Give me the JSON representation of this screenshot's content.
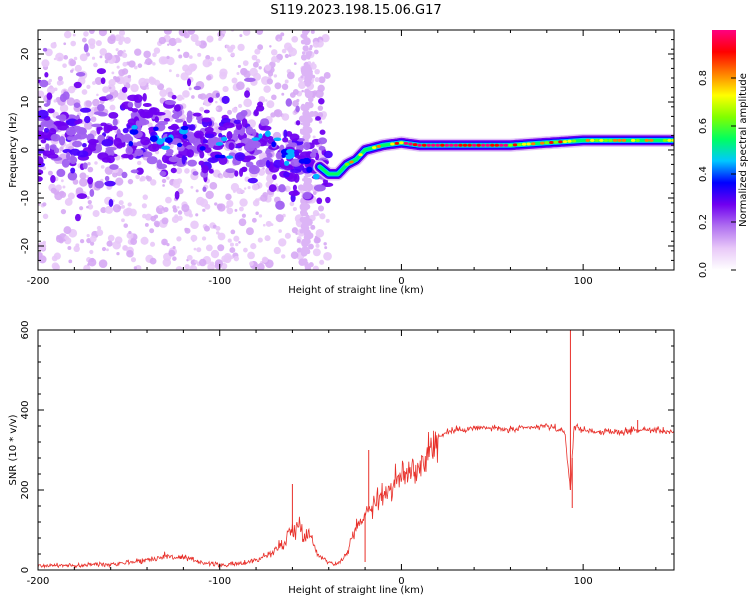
{
  "page_title": "S119.2023.198.15.06.G17",
  "chart_data": [
    {
      "type": "heatmap",
      "xlabel": "Height of straight line (km)",
      "ylabel": "Frequency (Hz)",
      "xlim": [
        -200,
        150
      ],
      "ylim": [
        -25,
        25
      ],
      "xticks": [
        -200,
        -100,
        0,
        100
      ],
      "yticks": [
        -20,
        -10,
        0,
        10,
        20
      ],
      "grid": false,
      "colorbar": {
        "label": "Normalized spectral amplitude",
        "range": [
          0.0,
          1.0
        ],
        "ticks": [
          0.0,
          0.2,
          0.4,
          0.6,
          0.8
        ],
        "colormap": [
          "#ffffff",
          "#e8c8f8",
          "#b070f0",
          "#7000f0",
          "#0000ff",
          "#00c8ff",
          "#00ff60",
          "#80ff00",
          "#ffff00",
          "#ff8000",
          "#ff0000",
          "#ff0080"
        ]
      },
      "ridge": {
        "description_points_x": [
          -200,
          -150,
          -100,
          -80,
          -60,
          -50,
          -40,
          -35,
          -30,
          -25,
          -20,
          -10,
          0,
          10,
          20,
          40,
          60,
          80,
          100,
          120,
          150
        ],
        "description_points_y": [
          4,
          3,
          2,
          1.5,
          0,
          -2,
          -5,
          -5,
          -3,
          -2,
          0,
          1,
          1.5,
          1,
          1,
          1,
          1,
          1.5,
          2,
          2,
          2
        ]
      }
    },
    {
      "type": "line",
      "xlabel": "Height of straight line (km)",
      "ylabel": "SNR (10 * v/v)",
      "xlim": [
        -200,
        150
      ],
      "ylim": [
        0,
        600
      ],
      "xticks": [
        -200,
        -100,
        0,
        100
      ],
      "yticks": [
        0,
        200,
        400,
        600
      ],
      "grid": false,
      "series": [
        {
          "color": "#e8302a",
          "x": [
            -200,
            -190,
            -180,
            -170,
            -160,
            -150,
            -140,
            -130,
            -120,
            -110,
            -100,
            -90,
            -80,
            -70,
            -65,
            -60,
            -55,
            -50,
            -45,
            -40,
            -35,
            -30,
            -25,
            -20,
            -15,
            -10,
            -5,
            0,
            5,
            10,
            15,
            20,
            25,
            30,
            40,
            50,
            60,
            70,
            80,
            85,
            90,
            93,
            95,
            100,
            110,
            120,
            130,
            140,
            150
          ],
          "y": [
            10,
            12,
            10,
            14,
            15,
            20,
            25,
            35,
            30,
            20,
            12,
            15,
            25,
            45,
            70,
            100,
            110,
            80,
            35,
            20,
            15,
            40,
            110,
            140,
            170,
            190,
            210,
            230,
            250,
            260,
            300,
            330,
            345,
            350,
            355,
            355,
            350,
            355,
            360,
            355,
            340,
            200,
            360,
            350,
            345,
            345,
            350,
            350,
            345
          ]
        }
      ],
      "spikes": [
        {
          "x": -60,
          "y": 215
        },
        {
          "x": -18,
          "y": 300
        },
        {
          "x": -20,
          "y": 20
        },
        {
          "x": 93,
          "y": 600
        },
        {
          "x": 94,
          "y": 155
        },
        {
          "x": 130,
          "y": 375
        }
      ]
    }
  ]
}
